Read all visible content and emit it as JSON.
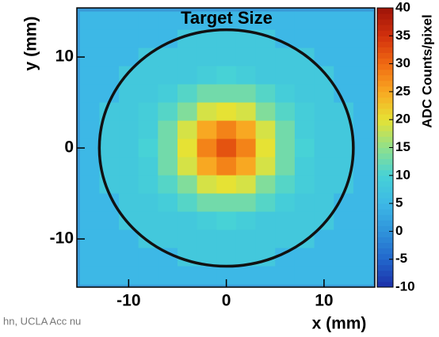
{
  "chart_data": {
    "type": "heatmap",
    "title": "Target Size",
    "xlabel": "x (mm)",
    "ylabel": "y (mm)",
    "colorbar_label": "ADC Counts/pixel",
    "footer": "hn, UCLA Acc nu",
    "x": [
      -14,
      -12,
      -10,
      -8,
      -6,
      -4,
      -2,
      0,
      2,
      4,
      6,
      8,
      10,
      12,
      14
    ],
    "y": [
      14,
      12,
      10,
      8,
      6,
      4,
      2,
      0,
      -2,
      -4,
      -6,
      -8,
      -10,
      -12,
      -14
    ],
    "z": [
      [
        5,
        5,
        5,
        5,
        5,
        5,
        5,
        5,
        5,
        5,
        5,
        5,
        5,
        5,
        5
      ],
      [
        5,
        5,
        5,
        5,
        5,
        8,
        8,
        8,
        8,
        8,
        5,
        5,
        5,
        5,
        5
      ],
      [
        5,
        5,
        5,
        8,
        8,
        8,
        8,
        8,
        8,
        8,
        8,
        8,
        5,
        5,
        5
      ],
      [
        5,
        5,
        8,
        8,
        8,
        8,
        9,
        10,
        9,
        8,
        8,
        8,
        8,
        5,
        5
      ],
      [
        5,
        5,
        8,
        8,
        9,
        11,
        13,
        13,
        13,
        11,
        9,
        8,
        8,
        5,
        5
      ],
      [
        5,
        8,
        8,
        9,
        11,
        14,
        19,
        20,
        19,
        14,
        11,
        9,
        8,
        8,
        5
      ],
      [
        5,
        8,
        8,
        9,
        13,
        19,
        25,
        28,
        25,
        19,
        13,
        9,
        8,
        8,
        5
      ],
      [
        5,
        8,
        8,
        10,
        13,
        20,
        28,
        32,
        28,
        20,
        13,
        10,
        8,
        8,
        5
      ],
      [
        5,
        8,
        8,
        9,
        13,
        19,
        25,
        28,
        25,
        19,
        13,
        9,
        8,
        8,
        5
      ],
      [
        5,
        8,
        8,
        9,
        11,
        14,
        19,
        20,
        19,
        14,
        11,
        9,
        8,
        8,
        5
      ],
      [
        5,
        5,
        8,
        8,
        9,
        11,
        13,
        13,
        13,
        11,
        9,
        8,
        8,
        5,
        5
      ],
      [
        5,
        5,
        8,
        8,
        8,
        8,
        9,
        10,
        9,
        8,
        8,
        8,
        8,
        5,
        5
      ],
      [
        5,
        5,
        5,
        8,
        8,
        8,
        8,
        8,
        8,
        8,
        8,
        8,
        5,
        5,
        5
      ],
      [
        5,
        5,
        5,
        5,
        5,
        8,
        8,
        8,
        8,
        8,
        5,
        5,
        5,
        5,
        5
      ],
      [
        5,
        5,
        5,
        5,
        5,
        5,
        5,
        5,
        5,
        5,
        5,
        5,
        5,
        5,
        5
      ]
    ],
    "xlim": [
      -15.3,
      15.2
    ],
    "ylim": [
      -15.3,
      15.4
    ],
    "xticks": [
      -10,
      0,
      10
    ],
    "yticks": [
      -10,
      0,
      10
    ],
    "zlim": [
      -10,
      40
    ],
    "zticks": [
      -10,
      -5,
      0,
      5,
      10,
      15,
      20,
      25,
      30,
      35,
      40
    ],
    "colorscale": [
      "#1c2fa8",
      "#2266cc",
      "#2f93da",
      "#3db8e6",
      "#47d2d6",
      "#8fe08c",
      "#e6e234",
      "#f8a822",
      "#f06a12",
      "#d2300e",
      "#9e1408"
    ],
    "target_circle": {
      "center": [
        0,
        0
      ],
      "radius": 13
    }
  }
}
